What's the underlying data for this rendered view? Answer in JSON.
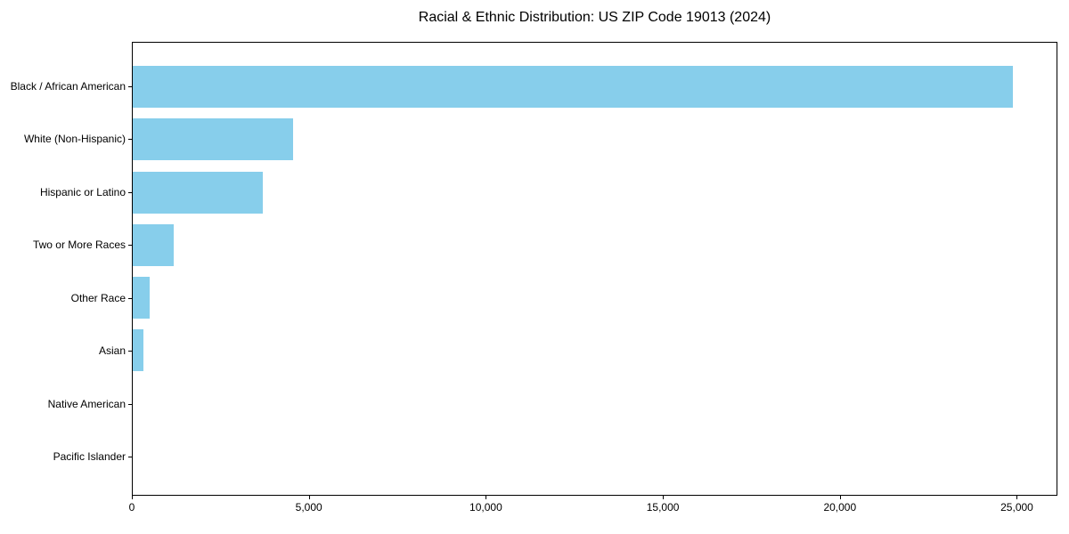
{
  "figure": {
    "background": "#ffffff"
  },
  "chart_data": {
    "type": "bar",
    "orientation": "horizontal",
    "title": "Racial & Ethnic Distribution: US ZIP Code 19013 (2024)",
    "categories": [
      "Black / African American",
      "White (Non-Hispanic)",
      "Hispanic or Latino",
      "Two or More Races",
      "Other Race",
      "Asian",
      "Native American",
      "Pacific Islander"
    ],
    "values": [
      24900,
      4530,
      3670,
      1150,
      480,
      310,
      0,
      0
    ],
    "xlabel": "",
    "ylabel": "",
    "xlim": [
      0,
      26145
    ],
    "xticks": [
      0,
      5000,
      10000,
      15000,
      20000,
      25000
    ],
    "xtick_labels": [
      "0",
      "5,000",
      "10,000",
      "15,000",
      "20,000",
      "25,000"
    ],
    "grid": false,
    "legend": "none",
    "bar_color": "#87CEEB",
    "axis_color": "#000000",
    "text_color": "#000000"
  }
}
